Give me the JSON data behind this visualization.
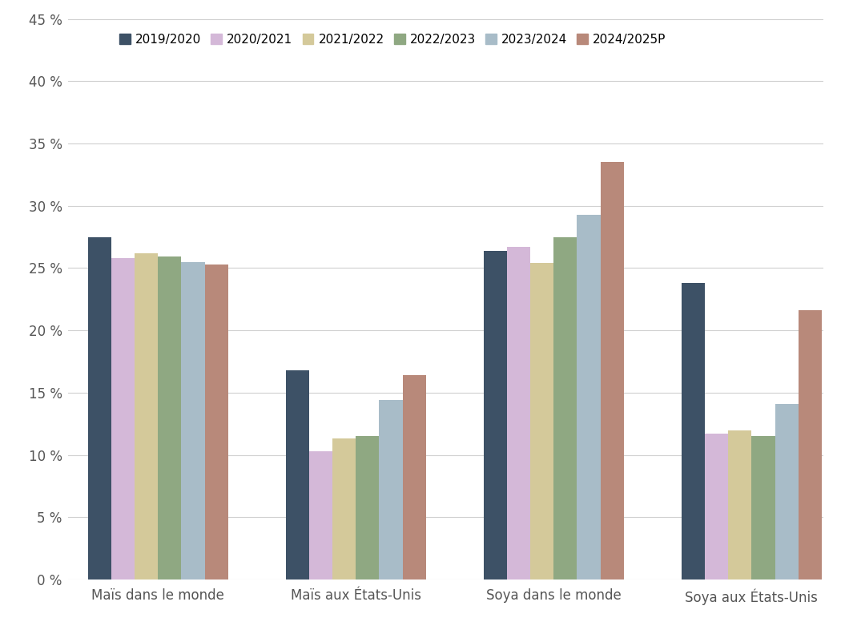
{
  "categories": [
    "Maïs dans le monde",
    "Maïs aux États-Unis",
    "Soya dans le monde",
    "Soya aux États-Unis"
  ],
  "series": [
    {
      "label": "2019/2020",
      "color": "#3d5166",
      "values": [
        27.5,
        16.8,
        26.4,
        23.8
      ]
    },
    {
      "label": "2020/2021",
      "color": "#d4b8d8",
      "values": [
        25.8,
        10.3,
        26.7,
        11.7
      ]
    },
    {
      "label": "2021/2022",
      "color": "#d4c99a",
      "values": [
        26.2,
        11.3,
        25.4,
        12.0
      ]
    },
    {
      "label": "2022/2023",
      "color": "#8fa882",
      "values": [
        25.9,
        11.5,
        27.5,
        11.5
      ]
    },
    {
      "label": "2023/2024",
      "color": "#a8bcc8",
      "values": [
        25.5,
        14.4,
        29.3,
        14.1
      ]
    },
    {
      "label": "2024/2025P",
      "color": "#b8897a",
      "values": [
        25.3,
        16.4,
        33.5,
        21.6
      ]
    }
  ],
  "ylim": [
    0,
    45
  ],
  "yticks": [
    0,
    5,
    10,
    15,
    20,
    25,
    30,
    35,
    40,
    45
  ],
  "ytick_labels": [
    "0 %",
    "5 %",
    "10 %",
    "15 %",
    "20 %",
    "25 %",
    "30 %",
    "35 %",
    "40 %",
    "45 %"
  ],
  "background_color": "#ffffff",
  "grid_color": "#d0d0d0",
  "bar_width": 0.13,
  "legend_fontsize": 11,
  "tick_fontsize": 12,
  "xlabel_fontsize": 12
}
